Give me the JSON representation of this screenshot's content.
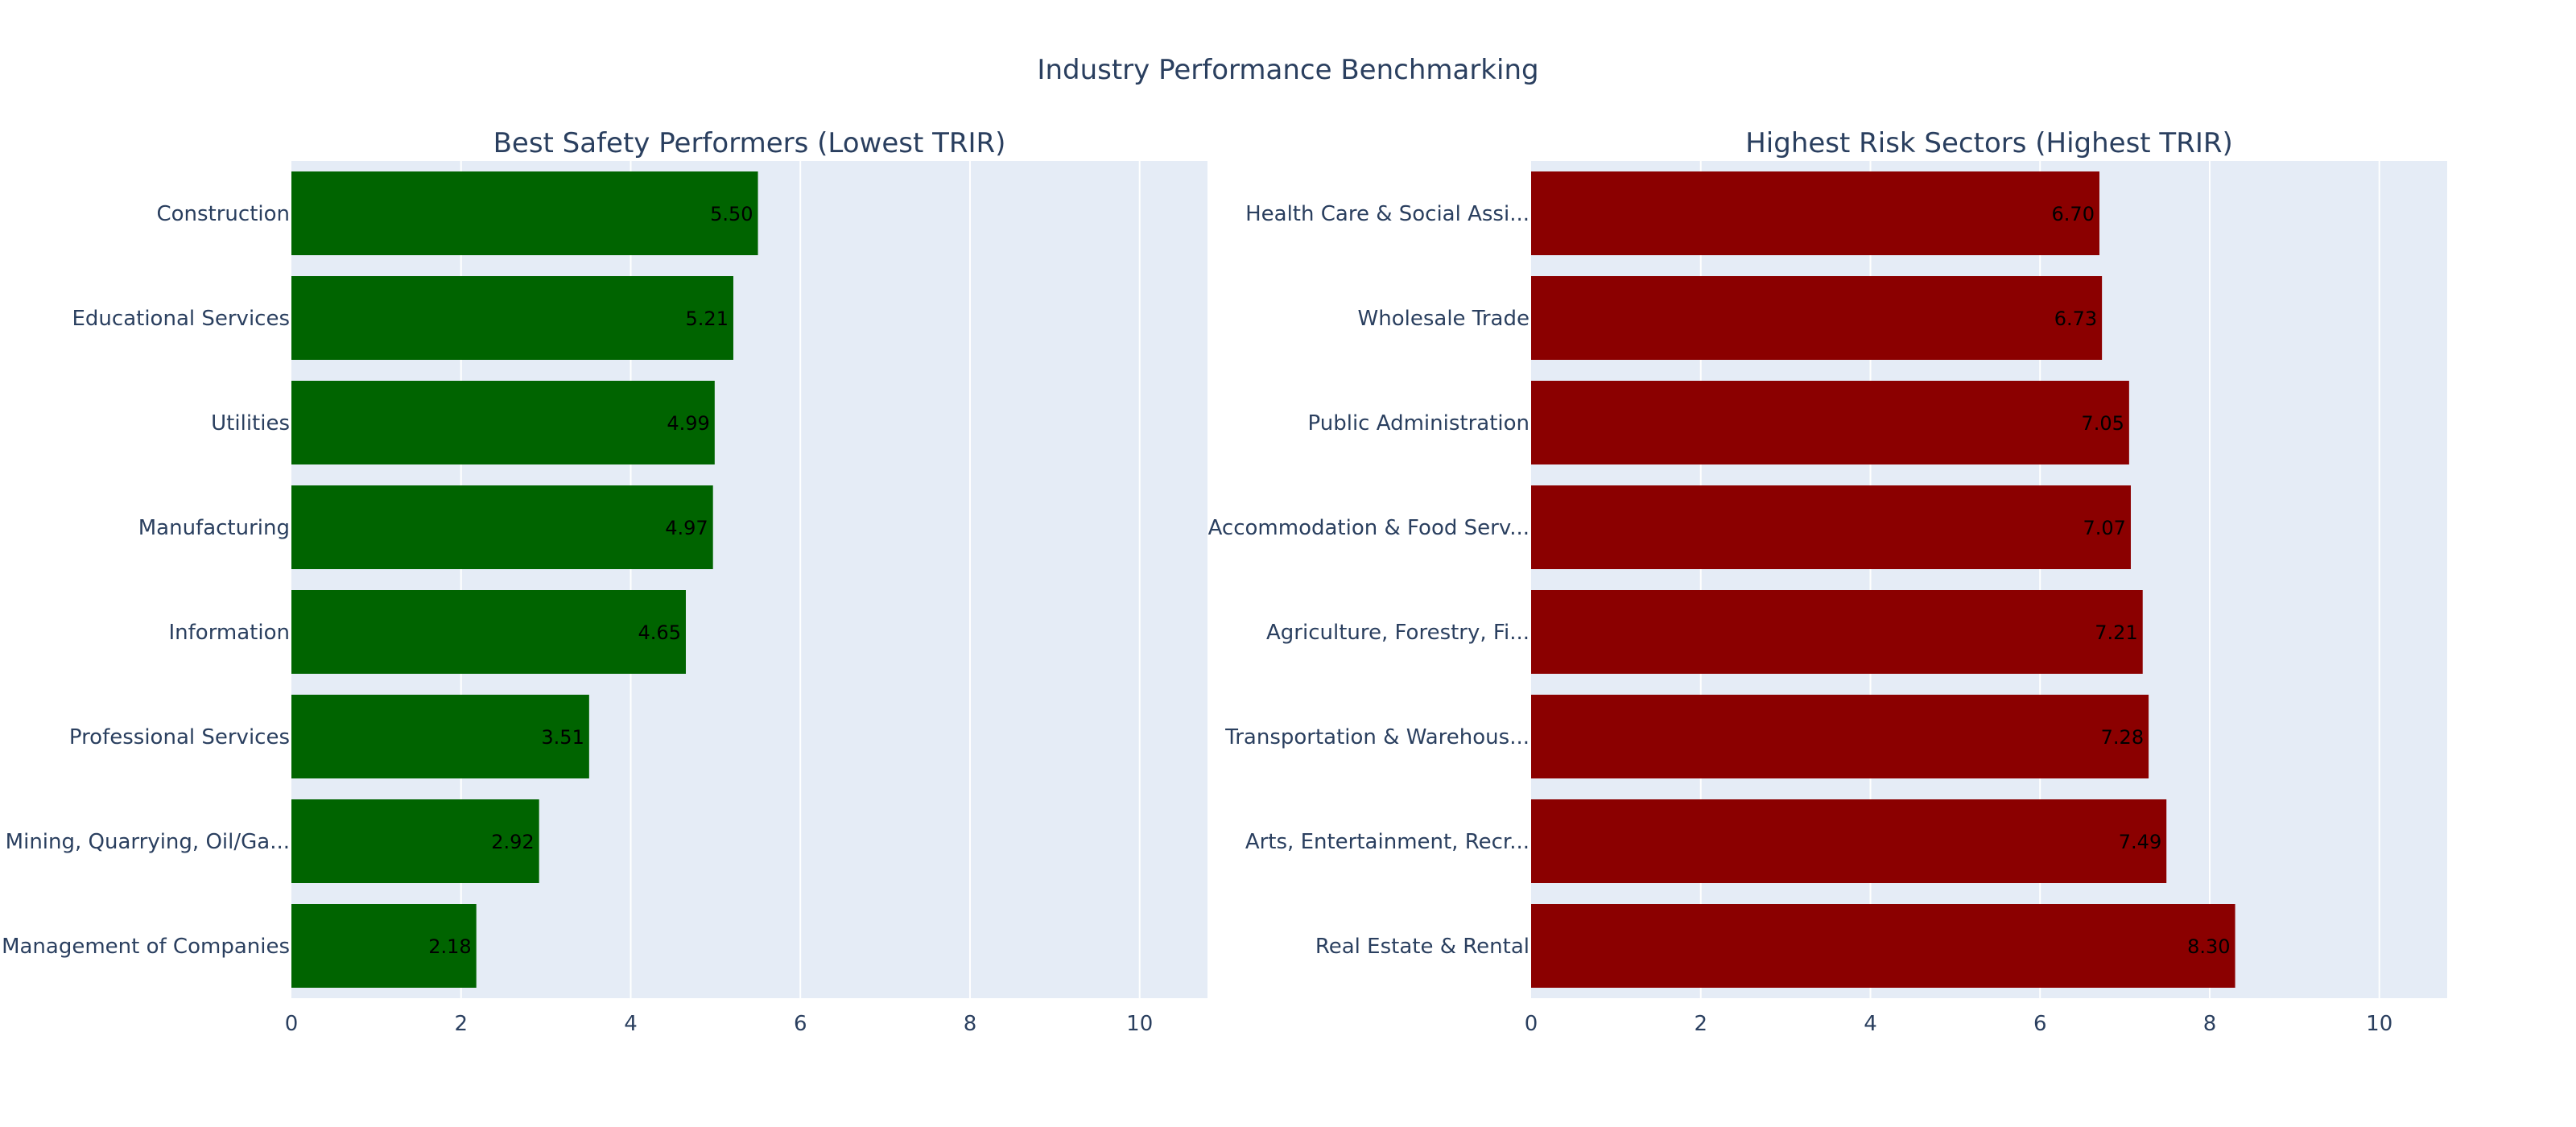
{
  "title": "Industry Performance Benchmarking",
  "chart_data": [
    {
      "type": "bar",
      "orientation": "horizontal",
      "title": "Best Safety Performers (Lowest TRIR)",
      "color": "#006400",
      "xlim": [
        0,
        10.8
      ],
      "x_ticks": [
        0,
        2,
        4,
        6,
        8,
        10
      ],
      "categories": [
        "Construction",
        "Educational Services",
        "Utilities",
        "Manufacturing",
        "Information",
        "Professional Services",
        "Mining, Quarrying, Oil/Ga...",
        "Management of Companies"
      ],
      "values": [
        5.5,
        5.21,
        4.99,
        4.97,
        4.65,
        3.51,
        2.92,
        2.18
      ],
      "labels": [
        "5.50",
        "5.21",
        "4.99",
        "4.97",
        "4.65",
        "3.51",
        "2.92",
        "2.18"
      ]
    },
    {
      "type": "bar",
      "orientation": "horizontal",
      "title": "Highest Risk Sectors (Highest TRIR)",
      "color": "#8b0000",
      "xlim": [
        0,
        10.8
      ],
      "x_ticks": [
        0,
        2,
        4,
        6,
        8,
        10
      ],
      "categories": [
        "Health Care & Social Assi...",
        "Wholesale Trade",
        "Public Administration",
        "Accommodation & Food Serv...",
        "Agriculture, Forestry, Fi...",
        "Transportation & Warehous...",
        "Arts, Entertainment, Recr...",
        "Real Estate & Rental"
      ],
      "values": [
        6.7,
        6.73,
        7.05,
        7.07,
        7.21,
        7.28,
        7.49,
        8.3
      ],
      "labels": [
        "6.70",
        "6.73",
        "7.05",
        "7.07",
        "7.21",
        "7.28",
        "7.49",
        "8.30"
      ]
    }
  ],
  "colors": {
    "plot_background": "#e5ecf6",
    "grid": "#ffffff",
    "text": "#2a3f5f"
  }
}
